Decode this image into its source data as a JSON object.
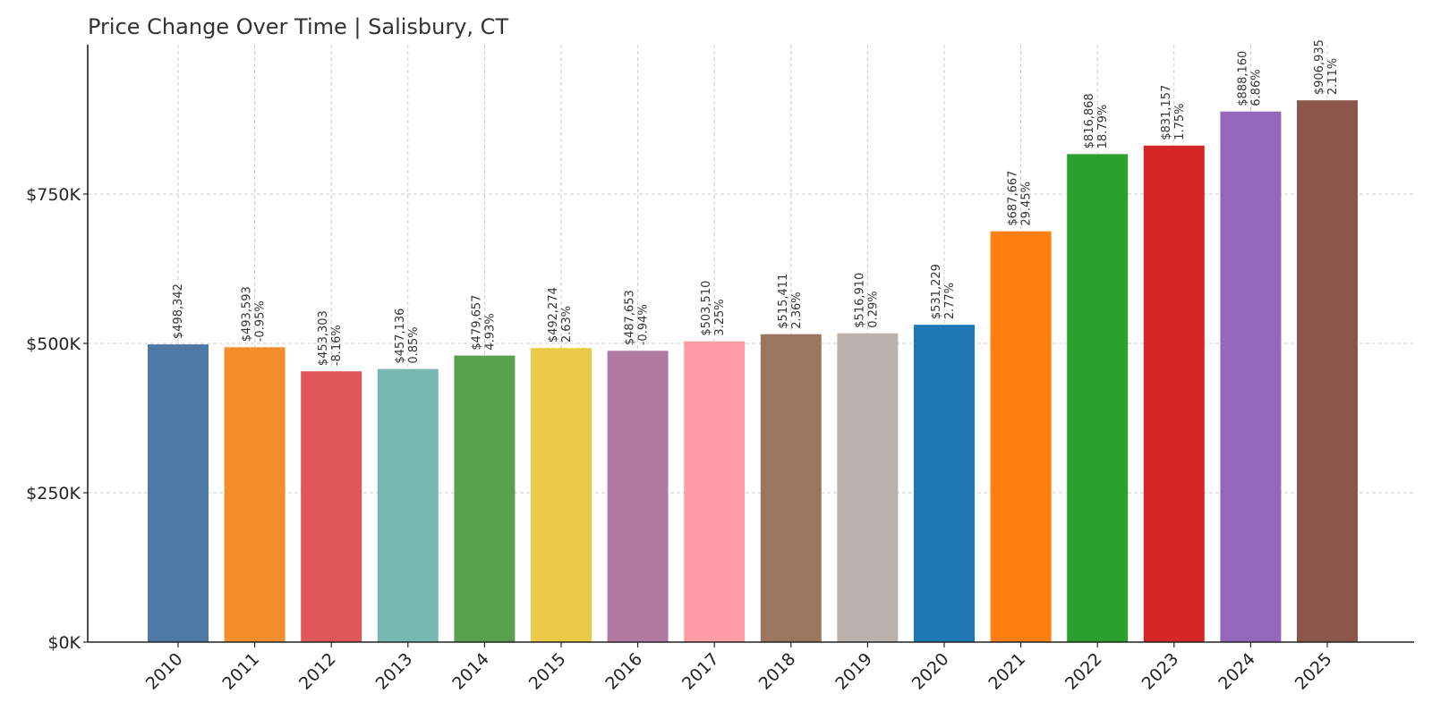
{
  "chart_data": {
    "type": "bar",
    "title": "Price Change Over Time | Salisbury, CT",
    "xlabel": "",
    "ylabel": "",
    "ylim": [
      0,
      1000000
    ],
    "grid": true,
    "y_ticks": [
      {
        "value": 0,
        "label": "$0K"
      },
      {
        "value": 250000,
        "label": "$250K"
      },
      {
        "value": 500000,
        "label": "$500K"
      },
      {
        "value": 750000,
        "label": "$750K"
      }
    ],
    "categories": [
      "2010",
      "2011",
      "2012",
      "2013",
      "2014",
      "2015",
      "2016",
      "2017",
      "2018",
      "2019",
      "2020",
      "2021",
      "2022",
      "2023",
      "2024",
      "2025"
    ],
    "values": [
      498342,
      493593,
      453303,
      457136,
      479657,
      492274,
      487653,
      503510,
      515411,
      516910,
      531229,
      687667,
      816868,
      831157,
      888160,
      906935
    ],
    "value_labels": [
      "$498,342",
      "$493,593",
      "$453,303",
      "$457,136",
      "$479,657",
      "$492,274",
      "$487,653",
      "$503,510",
      "$515,411",
      "$516,910",
      "$531,229",
      "$687,667",
      "$816,868",
      "$831,157",
      "$888,160",
      "$906,935"
    ],
    "pct_labels": [
      "",
      "-0.95%",
      "-8.16%",
      "0.85%",
      "4.93%",
      "2.63%",
      "-0.94%",
      "3.25%",
      "2.36%",
      "0.29%",
      "2.77%",
      "29.45%",
      "18.79%",
      "1.75%",
      "6.86%",
      "2.11%"
    ],
    "colors": [
      "#4e79a7",
      "#f28e2b",
      "#e15759",
      "#76b7b2",
      "#59a14f",
      "#edc948",
      "#b07aa1",
      "#ff9da7",
      "#9c755f",
      "#bab0ac",
      "#1f77b4",
      "#ff7f0e",
      "#2ca02c",
      "#d62728",
      "#9467bd",
      "#8c564b"
    ]
  }
}
